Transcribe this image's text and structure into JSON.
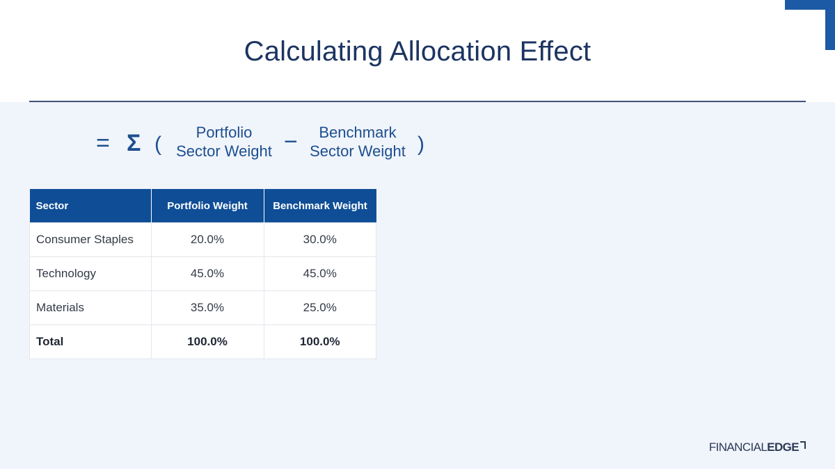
{
  "slide": {
    "title": "Calculating Allocation Effect"
  },
  "formula": {
    "equals": "=",
    "sigma": "Σ",
    "open_paren": "(",
    "minus": "−",
    "close_paren": ")",
    "term1_top": "Portfolio",
    "term1_bottom": "Sector Weight",
    "term2_top": "Benchmark",
    "term2_bottom": "Sector Weight"
  },
  "table": {
    "headers": [
      "Sector",
      "Portfolio Weight",
      "Benchmark Weight"
    ],
    "rows": [
      [
        "Consumer Staples",
        "20.0%",
        "30.0%"
      ],
      [
        "Technology",
        "45.0%",
        "45.0%"
      ],
      [
        "Materials",
        "35.0%",
        "25.0%"
      ]
    ],
    "total": [
      "Total",
      "100.0%",
      "100.0%"
    ]
  },
  "logo": {
    "light": "FINANCIAL",
    "bold": "EDGE"
  },
  "colors": {
    "title": "#1c3461",
    "header_fill": "#0f4e96",
    "content_background": "#f0f4fb",
    "accent_corner": "#1d5aa6"
  }
}
